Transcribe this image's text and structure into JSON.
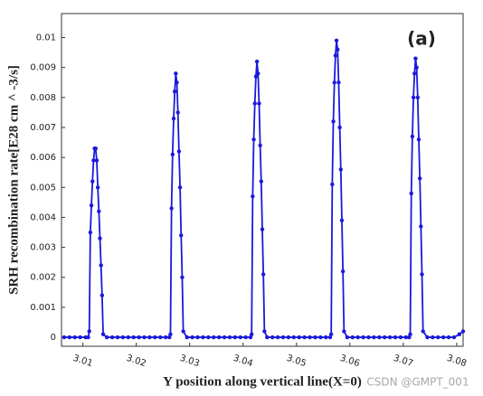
{
  "chart_data": {
    "type": "line",
    "annotation": "(a)",
    "watermark": "CSDN @GMPT_001",
    "x_label": "Y position along vertical line(X=0)",
    "y_label": "SRH recombination rate[E28 cm ^ -3/s]",
    "xlim": [
      3.006,
      3.0812
    ],
    "ylim": [
      -0.0003,
      0.0108
    ],
    "xticks": [
      3.01,
      3.02,
      3.03,
      3.04,
      3.05,
      3.06,
      3.07,
      3.08
    ],
    "yticks": [
      0,
      0.001,
      0.002,
      0.003,
      0.004,
      0.005,
      0.006,
      0.007,
      0.008,
      0.009,
      0.01
    ],
    "x": [
      3.0065,
      3.0075,
      3.0085,
      3.0095,
      3.0105,
      3.011,
      3.0112,
      3.0114,
      3.0116,
      3.0118,
      3.012,
      3.0122,
      3.0124,
      3.0126,
      3.0128,
      3.013,
      3.0132,
      3.0134,
      3.0136,
      3.0138,
      3.0145,
      3.0155,
      3.0165,
      3.0175,
      3.0185,
      3.0195,
      3.0205,
      3.0215,
      3.0225,
      3.0235,
      3.0245,
      3.0255,
      3.0262,
      3.0264,
      3.0266,
      3.0268,
      3.027,
      3.0272,
      3.0274,
      3.0276,
      3.0278,
      3.028,
      3.0282,
      3.0284,
      3.0286,
      3.0288,
      3.0295,
      3.0305,
      3.0315,
      3.0325,
      3.0335,
      3.0345,
      3.0355,
      3.0365,
      3.0375,
      3.0385,
      3.0395,
      3.0405,
      3.0414,
      3.0416,
      3.0418,
      3.042,
      3.0422,
      3.0424,
      3.0426,
      3.0428,
      3.043,
      3.0432,
      3.0434,
      3.0436,
      3.0438,
      3.044,
      3.0445,
      3.0455,
      3.0465,
      3.0475,
      3.0485,
      3.0495,
      3.0505,
      3.0515,
      3.0525,
      3.0535,
      3.0545,
      3.0555,
      3.0563,
      3.0565,
      3.0567,
      3.0569,
      3.0571,
      3.0573,
      3.0575,
      3.0577,
      3.0579,
      3.0581,
      3.0583,
      3.0585,
      3.0587,
      3.0589,
      3.0595,
      3.0605,
      3.0615,
      3.0625,
      3.0635,
      3.0645,
      3.0655,
      3.0665,
      3.0675,
      3.0685,
      3.0695,
      3.0705,
      3.0711,
      3.0713,
      3.0715,
      3.0717,
      3.0719,
      3.0721,
      3.0723,
      3.0725,
      3.0727,
      3.0729,
      3.0731,
      3.0733,
      3.0735,
      3.0737,
      3.0745,
      3.0755,
      3.0765,
      3.0775,
      3.0785,
      3.0795,
      3.0805,
      3.0812
    ],
    "series": [
      {
        "color": "#1a1adc",
        "values": [
          0,
          0,
          0,
          0,
          0,
          0,
          0.0002,
          0.0035,
          0.0044,
          0.0052,
          0.0059,
          0.0063,
          0.0063,
          0.0059,
          0.005,
          0.0042,
          0.0033,
          0.0024,
          0.0014,
          0.0001,
          0,
          0,
          0,
          0,
          0,
          0,
          0,
          0,
          0,
          0,
          0,
          0,
          0,
          0.0001,
          0.0043,
          0.0061,
          0.0073,
          0.0082,
          0.0088,
          0.0085,
          0.0075,
          0.0062,
          0.005,
          0.0034,
          0.002,
          0.0002,
          0,
          0,
          0,
          0,
          0,
          0,
          0,
          0,
          0,
          0,
          0,
          0,
          0,
          0.0001,
          0.0047,
          0.0066,
          0.0078,
          0.0087,
          0.0092,
          0.0088,
          0.0078,
          0.0064,
          0.0052,
          0.0036,
          0.0021,
          0.0002,
          0,
          0,
          0,
          0,
          0,
          0,
          0,
          0,
          0,
          0,
          0,
          0,
          0,
          0.0001,
          0.0051,
          0.0072,
          0.0085,
          0.0094,
          0.0099,
          0.0096,
          0.0085,
          0.007,
          0.0056,
          0.0039,
          0.0022,
          0.0002,
          0,
          0,
          0,
          0,
          0,
          0,
          0,
          0,
          0,
          0,
          0,
          0,
          0,
          0.0001,
          0.0048,
          0.0067,
          0.008,
          0.0088,
          0.0093,
          0.009,
          0.008,
          0.0066,
          0.0053,
          0.0037,
          0.0021,
          0.0002,
          0,
          0,
          0,
          0,
          0,
          0,
          0.0001,
          0.0002
        ]
      }
    ]
  }
}
